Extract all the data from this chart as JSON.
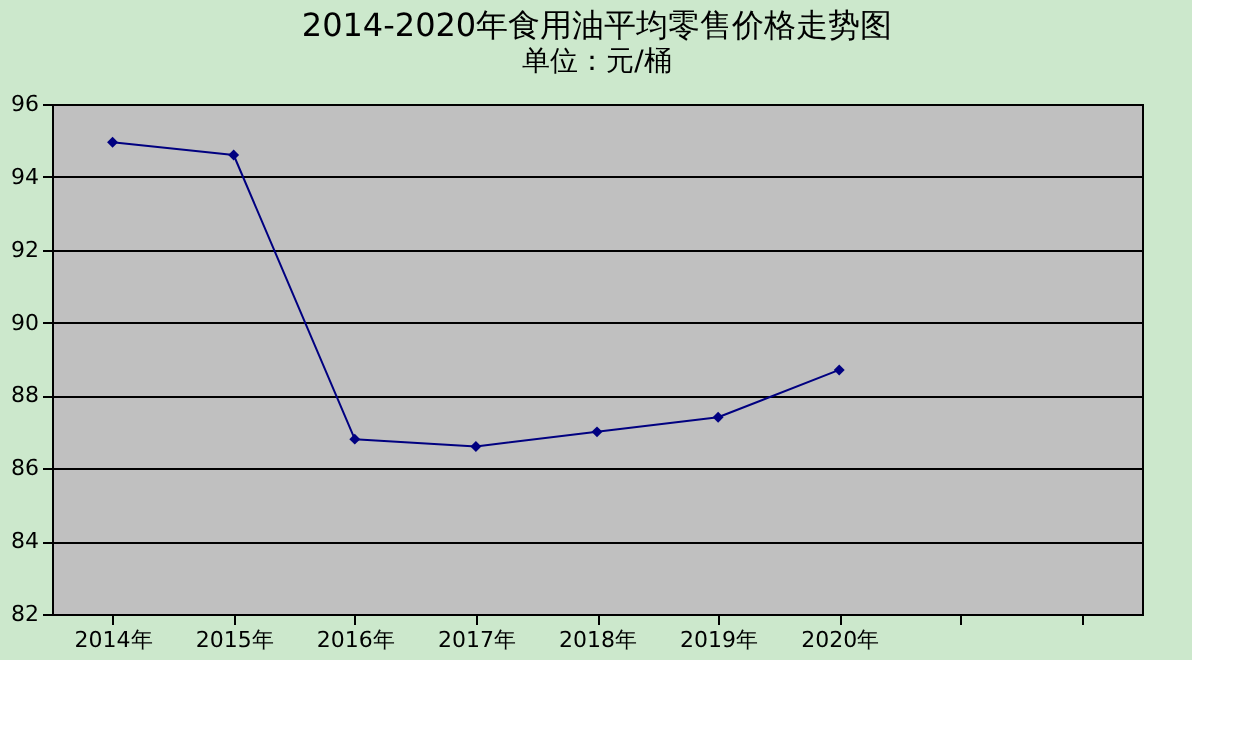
{
  "chart_data": {
    "type": "line",
    "title": "2014-2020年食用油平均零售价格走势图",
    "subtitle": "单位：元/桶",
    "categories": [
      "2014年",
      "2015年",
      "2016年",
      "2017年",
      "2018年",
      "2019年",
      "2020年",
      null,
      null
    ],
    "series": [
      {
        "color": "#000080",
        "values": [
          94.95,
          94.6,
          86.8,
          86.6,
          87.0,
          87.4,
          88.7,
          null,
          null
        ]
      }
    ],
    "ylim": [
      82,
      96
    ],
    "yticks": [
      82,
      84,
      86,
      88,
      90,
      92,
      94,
      96
    ],
    "grid": "y",
    "marker": "diamond",
    "line_style": "solid"
  }
}
